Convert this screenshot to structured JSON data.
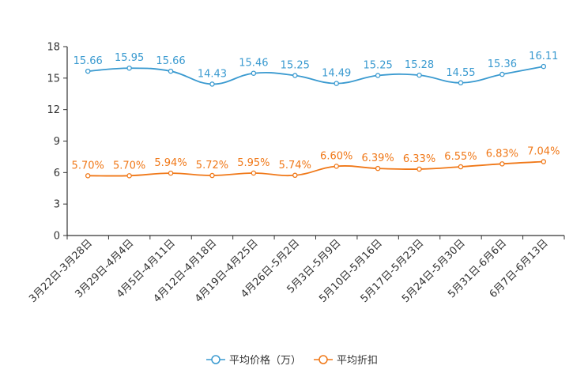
{
  "chart_data": {
    "type": "line",
    "title": "",
    "xlabel": "",
    "ylabel": "",
    "ylim": [
      0,
      18
    ],
    "yticks": [
      0,
      3,
      6,
      9,
      12,
      15,
      18
    ],
    "grid": false,
    "legend_position": "bottom",
    "categories": [
      "3月22日-3月28日",
      "3月29日-4月4日",
      "4月5日-4月11日",
      "4月12日-4月18日",
      "4月19日-4月25日",
      "4月26日-5月2日",
      "5月3日-5月9日",
      "5月10日-5月16日",
      "5月17日-5月23日",
      "5月24日-5月30日",
      "5月31日-6月6日",
      "6月7日-6月13日"
    ],
    "series": [
      {
        "name": "平均价格（万）",
        "color": "#3a9ad0",
        "values": [
          15.66,
          15.95,
          15.66,
          14.43,
          15.46,
          15.25,
          14.49,
          15.25,
          15.28,
          14.55,
          15.36,
          16.11
        ],
        "labels": [
          "15.66",
          "15.95",
          "15.66",
          "14.43",
          "15.46",
          "15.25",
          "14.49",
          "15.25",
          "15.28",
          "14.55",
          "15.36",
          "16.11"
        ]
      },
      {
        "name": "平均折扣",
        "color": "#f07818",
        "values": [
          5.7,
          5.7,
          5.94,
          5.72,
          5.95,
          5.74,
          6.6,
          6.39,
          6.33,
          6.55,
          6.83,
          7.04
        ],
        "labels": [
          "5.70%",
          "5.70%",
          "5.94%",
          "5.72%",
          "5.95%",
          "5.74%",
          "6.60%",
          "6.39%",
          "6.33%",
          "6.55%",
          "6.83%",
          "7.04%"
        ]
      }
    ]
  }
}
